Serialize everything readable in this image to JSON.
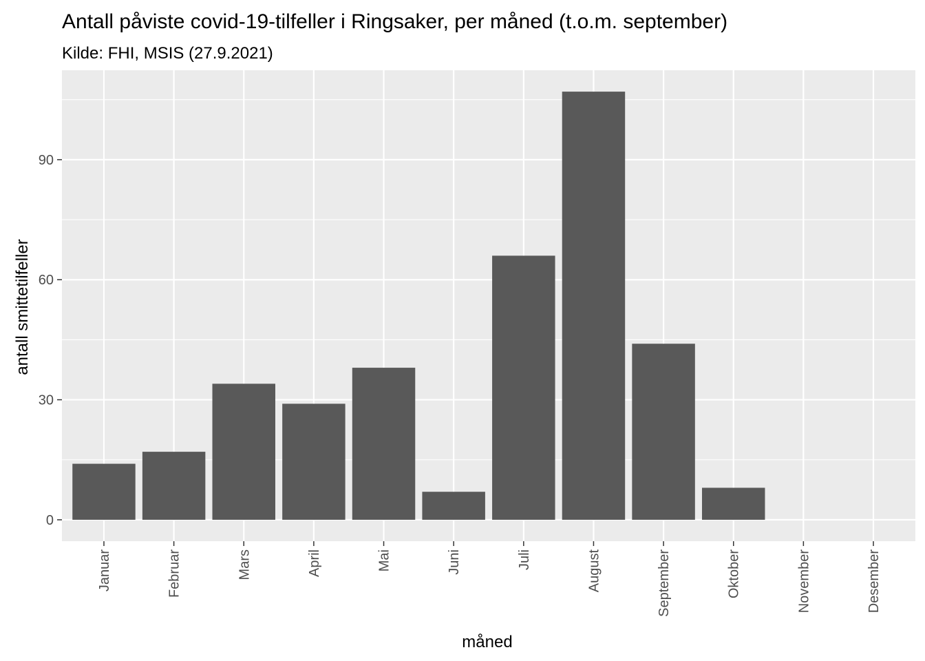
{
  "chart_data": {
    "type": "bar",
    "title": "Antall påviste covid-19-tilfeller i Ringsaker, per måned (t.o.m. september)",
    "subtitle": "Kilde: FHI, MSIS (27.9.2021)",
    "xlabel": "måned",
    "ylabel": "antall smittetilfeller",
    "categories": [
      "Januar",
      "Februar",
      "Mars",
      "April",
      "Mai",
      "Juni",
      "Juli",
      "August",
      "September",
      "Oktober",
      "November",
      "Desember"
    ],
    "values": [
      14,
      17,
      34,
      29,
      38,
      7,
      66,
      107,
      44,
      8,
      0,
      0
    ],
    "yticks": [
      0,
      30,
      60,
      90
    ],
    "ytick_labels": [
      "0",
      "30",
      "60",
      "90"
    ],
    "ylim": [
      -5.35,
      112.35
    ],
    "grid": true,
    "colors": {
      "bar": "#595959",
      "panel": "#ebebeb",
      "grid_major": "#ffffff",
      "tick_text": "#4d4d4d"
    }
  }
}
